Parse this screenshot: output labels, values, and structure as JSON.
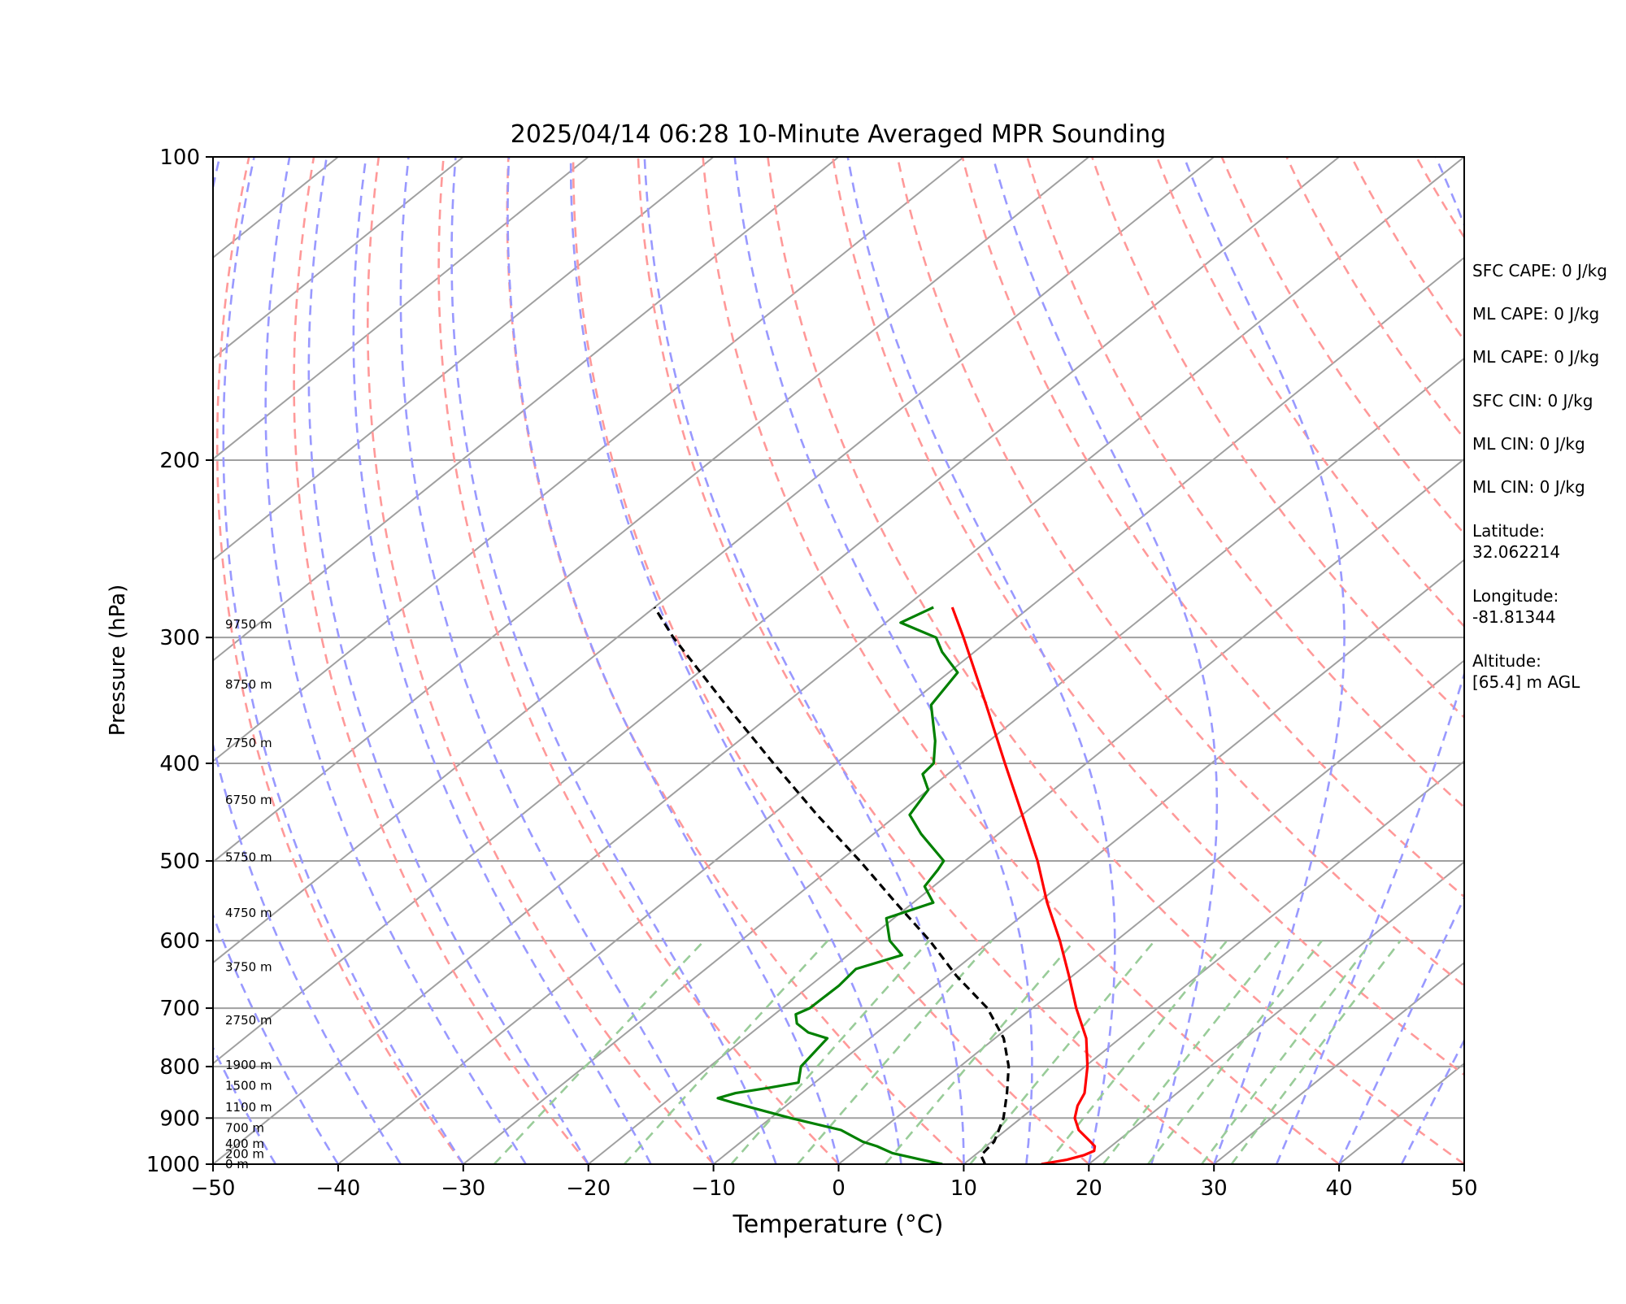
{
  "chart_data": {
    "type": "line",
    "subtype": "skew-T log-P sounding",
    "title": "2025/04/14 06:28 10-Minute Averaged MPR Sounding",
    "xlabel": "Temperature (°C)",
    "ylabel": "Pressure (hPa)",
    "xlim": [
      -50,
      50
    ],
    "ylim": [
      1000,
      100
    ],
    "yscale": "log",
    "skew": 1.0,
    "x_ticks": [
      -50,
      -40,
      -30,
      -20,
      -10,
      0,
      10,
      20,
      30,
      40,
      50
    ],
    "x_tick_labels": [
      "−50",
      "−40",
      "−30",
      "−20",
      "−10",
      "0",
      "10",
      "20",
      "30",
      "40",
      "50"
    ],
    "y_ticks": [
      1000,
      900,
      800,
      700,
      600,
      500,
      400,
      300,
      200,
      100
    ],
    "y_tick_labels": [
      "1000",
      "900",
      "800",
      "700",
      "600",
      "500",
      "400",
      "300",
      "200",
      "100"
    ],
    "grid": true,
    "colors": {
      "temperature": "#ff0000",
      "dewpoint": "#008000",
      "parcel": "#000000",
      "isotherm": "#a0a0a0",
      "dry_adiabat": "#ff9999",
      "moist_adiabat": "#9999ff",
      "mixing_ratio": "#99cc99"
    },
    "series": [
      {
        "key": "temperature",
        "pressure": [
          1000,
          990,
          980,
          970,
          960,
          950,
          925,
          900,
          875,
          850,
          800,
          750,
          700,
          650,
          600,
          550,
          500,
          450,
          400,
          350,
          300,
          280
        ],
        "values": [
          16.2,
          17.8,
          18.7,
          19.1,
          18.7,
          17.9,
          15.8,
          14.3,
          13.3,
          12.6,
          10.2,
          7.3,
          3.5,
          -0.3,
          -4.5,
          -9.3,
          -14.2,
          -20.0,
          -26.5,
          -33.8,
          -42.3,
          -46.2
        ]
      },
      {
        "key": "dewpoint",
        "pressure": [
          1000,
          990,
          975,
          960,
          950,
          925,
          900,
          870,
          860,
          850,
          840,
          830,
          800,
          750,
          740,
          725,
          710,
          700,
          665,
          640,
          620,
          600,
          570,
          550,
          530,
          510,
          500,
          470,
          450,
          425,
          410,
          400,
          380,
          350,
          325,
          310,
          300,
          290,
          280
        ],
        "values": [
          8.3,
          6.2,
          3.2,
          1.3,
          -0.3,
          -3.2,
          -8.4,
          -14.3,
          -16.2,
          -15.3,
          -13.2,
          -11.3,
          -12.7,
          -13.4,
          -15.5,
          -17.3,
          -18.3,
          -17.8,
          -17.7,
          -18.0,
          -15.7,
          -18.1,
          -20.6,
          -18.4,
          -20.7,
          -21.3,
          -21.7,
          -26.2,
          -29.0,
          -30.0,
          -32.0,
          -32.2,
          -34.3,
          -38.2,
          -39.3,
          -42.6,
          -44.5,
          -48.8,
          -47.7
        ]
      },
      {
        "key": "parcel",
        "pressure": [
          1000,
          980,
          950,
          900,
          850,
          800,
          750,
          700,
          650,
          600,
          550,
          500,
          450,
          400,
          350,
          300,
          280
        ],
        "values": [
          11.7,
          10.5,
          10.2,
          8.6,
          6.4,
          3.9,
          0.7,
          -3.6,
          -9.3,
          -14.9,
          -21.4,
          -28.4,
          -36.4,
          -45.0,
          -54.6,
          -65.5,
          -70.0
        ]
      }
    ],
    "height_labels": [
      {
        "text": "0 m",
        "pressure": 1000
      },
      {
        "text": "200 m",
        "pressure": 977
      },
      {
        "text": "400 m",
        "pressure": 955
      },
      {
        "text": "700 m",
        "pressure": 921
      },
      {
        "text": "1100 m",
        "pressure": 878
      },
      {
        "text": "1500 m",
        "pressure": 836
      },
      {
        "text": "1900 m",
        "pressure": 797
      },
      {
        "text": "2750 m",
        "pressure": 720
      },
      {
        "text": "3750 m",
        "pressure": 637
      },
      {
        "text": "4750 m",
        "pressure": 563
      },
      {
        "text": "5750 m",
        "pressure": 496
      },
      {
        "text": "6750 m",
        "pressure": 435
      },
      {
        "text": "7750 m",
        "pressure": 382
      },
      {
        "text": "8750 m",
        "pressure": 334
      },
      {
        "text": "9750 m",
        "pressure": 291
      }
    ],
    "annotations": [
      {
        "lines": [
          "SFC CAPE: 0 J/kg"
        ]
      },
      {
        "lines": [
          "ML CAPE: 0 J/kg"
        ]
      },
      {
        "lines": [
          "ML CAPE: 0 J/kg"
        ]
      },
      {
        "lines": [
          "SFC CIN: 0 J/kg"
        ]
      },
      {
        "lines": [
          "ML CIN: 0 J/kg"
        ]
      },
      {
        "lines": [
          "ML CIN: 0 J/kg"
        ]
      },
      {
        "lines": [
          "Latitude:",
          "32.062214"
        ]
      },
      {
        "lines": [
          "Longitude:",
          "-81.81344"
        ]
      },
      {
        "lines": [
          "Altitude:",
          "[65.4] m AGL"
        ]
      }
    ]
  }
}
